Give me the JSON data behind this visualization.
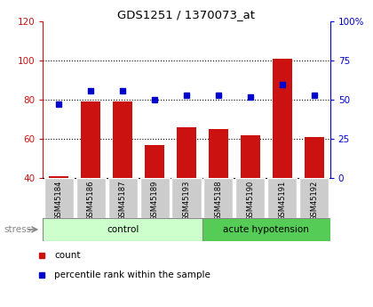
{
  "title": "GDS1251 / 1370073_at",
  "samples": [
    "GSM45184",
    "GSM45186",
    "GSM45187",
    "GSM45189",
    "GSM45193",
    "GSM45188",
    "GSM45190",
    "GSM45191",
    "GSM45192"
  ],
  "count_values": [
    41,
    79,
    79,
    57,
    66,
    65,
    62,
    101,
    61
  ],
  "pct_values": [
    47,
    56,
    56,
    50,
    53,
    53,
    52,
    60,
    53
  ],
  "count_base": 40,
  "ylim_left": [
    40,
    120
  ],
  "ylim_right": [
    0,
    100
  ],
  "yticks_left": [
    40,
    60,
    80,
    100,
    120
  ],
  "yticks_right": [
    0,
    25,
    50,
    75,
    100
  ],
  "ytick_labels_right": [
    "0",
    "25",
    "50",
    "75",
    "100%"
  ],
  "control_count": 5,
  "acute_count": 4,
  "group_labels": [
    "control",
    "acute hypotension"
  ],
  "control_bg_light": "#ccffcc",
  "acute_bg": "#55cc55",
  "bar_color": "#cc1111",
  "dot_color": "#0000cc",
  "sample_box_bg": "#cccccc",
  "legend_count_label": "count",
  "legend_pct_label": "percentile rank within the sample",
  "stress_label": "stress",
  "left_axis_color": "#cc1111",
  "right_axis_color": "#0000cc",
  "grid_yticks": [
    60,
    80,
    100
  ]
}
